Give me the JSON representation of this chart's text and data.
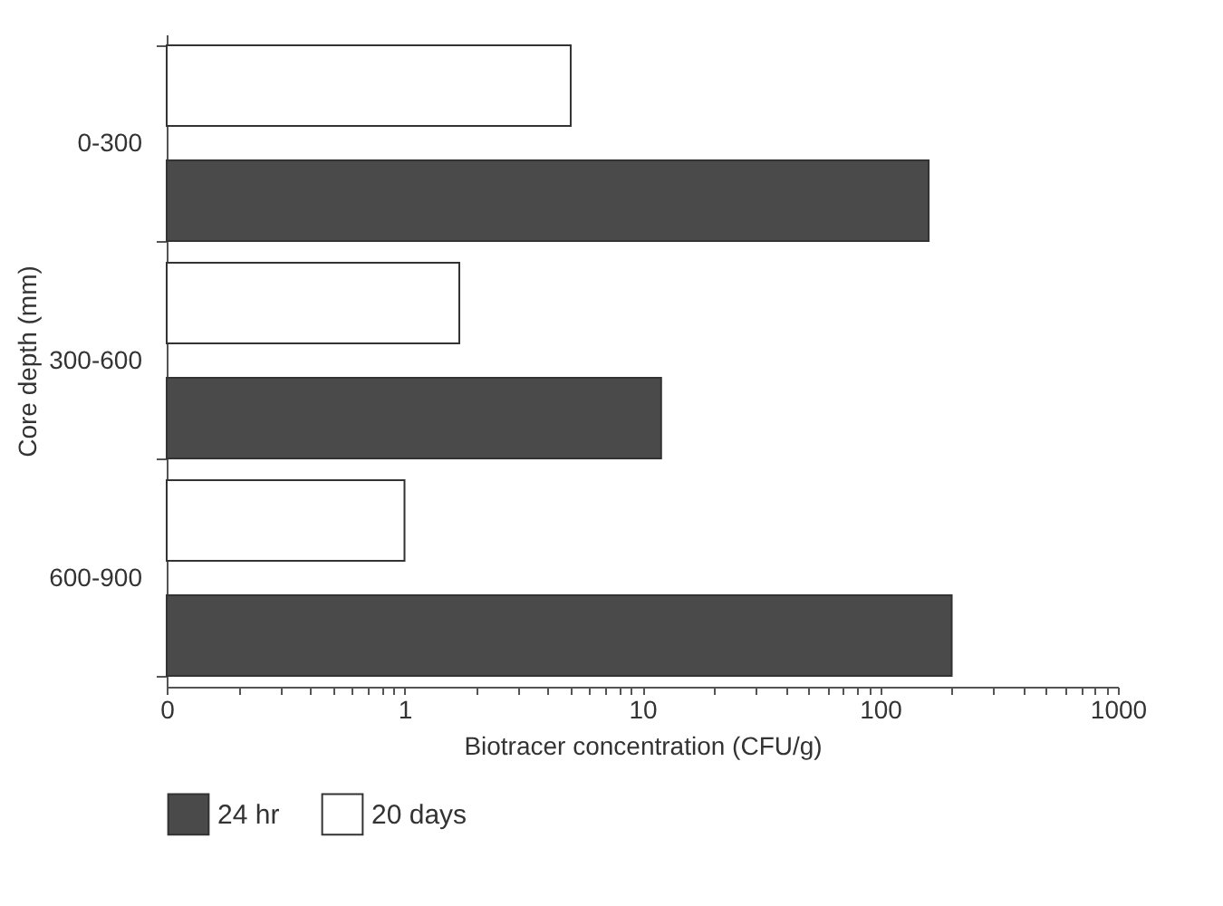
{
  "chart_data": {
    "type": "bar",
    "orientation": "horizontal",
    "log": "x",
    "xlabel": "Biotracer concentration (CFU/g)",
    "ylabel": "Core depth (mm)",
    "categories": [
      "0-300",
      "300-600",
      "600-900"
    ],
    "series": [
      {
        "name": "24 hr",
        "color": "#4a4a4a",
        "values": [
          160,
          12,
          200
        ]
      },
      {
        "name": "20 days",
        "color": "#ffffff",
        "values": [
          5,
          1.7,
          1
        ]
      }
    ],
    "xlim": [
      0.1,
      1000
    ],
    "xticks": [
      {
        "value": 0.1,
        "label": "0"
      },
      {
        "value": 0.2,
        "label": null
      },
      {
        "value": 0.3,
        "label": null
      },
      {
        "value": 0.4,
        "label": null
      },
      {
        "value": 0.5,
        "label": null
      },
      {
        "value": 0.6,
        "label": null
      },
      {
        "value": 0.7,
        "label": null
      },
      {
        "value": 0.8,
        "label": null
      },
      {
        "value": 0.9,
        "label": null
      },
      1,
      {
        "value": 2,
        "label": null
      },
      {
        "value": 3,
        "label": null
      },
      {
        "value": 4,
        "label": null
      },
      {
        "value": 5,
        "label": null
      },
      {
        "value": 6,
        "label": null
      },
      {
        "value": 7,
        "label": null
      },
      {
        "value": 8,
        "label": null
      },
      {
        "value": 9,
        "label": null
      },
      10,
      {
        "value": 20,
        "label": null
      },
      {
        "value": 30,
        "label": null
      },
      {
        "value": 40,
        "label": null
      },
      {
        "value": 50,
        "label": null
      },
      {
        "value": 60,
        "label": null
      },
      {
        "value": 70,
        "label": null
      },
      {
        "value": 80,
        "label": null
      },
      {
        "value": 90,
        "label": null
      },
      100,
      {
        "value": 200,
        "label": null
      },
      {
        "value": 300,
        "label": null
      },
      {
        "value": 400,
        "label": null
      },
      {
        "value": 500,
        "label": null
      },
      {
        "value": 600,
        "label": null
      },
      {
        "value": 700,
        "label": null
      },
      {
        "value": 800,
        "label": null
      },
      {
        "value": 900,
        "label": null
      },
      1000
    ],
    "grid": false,
    "legend": "bottom"
  }
}
